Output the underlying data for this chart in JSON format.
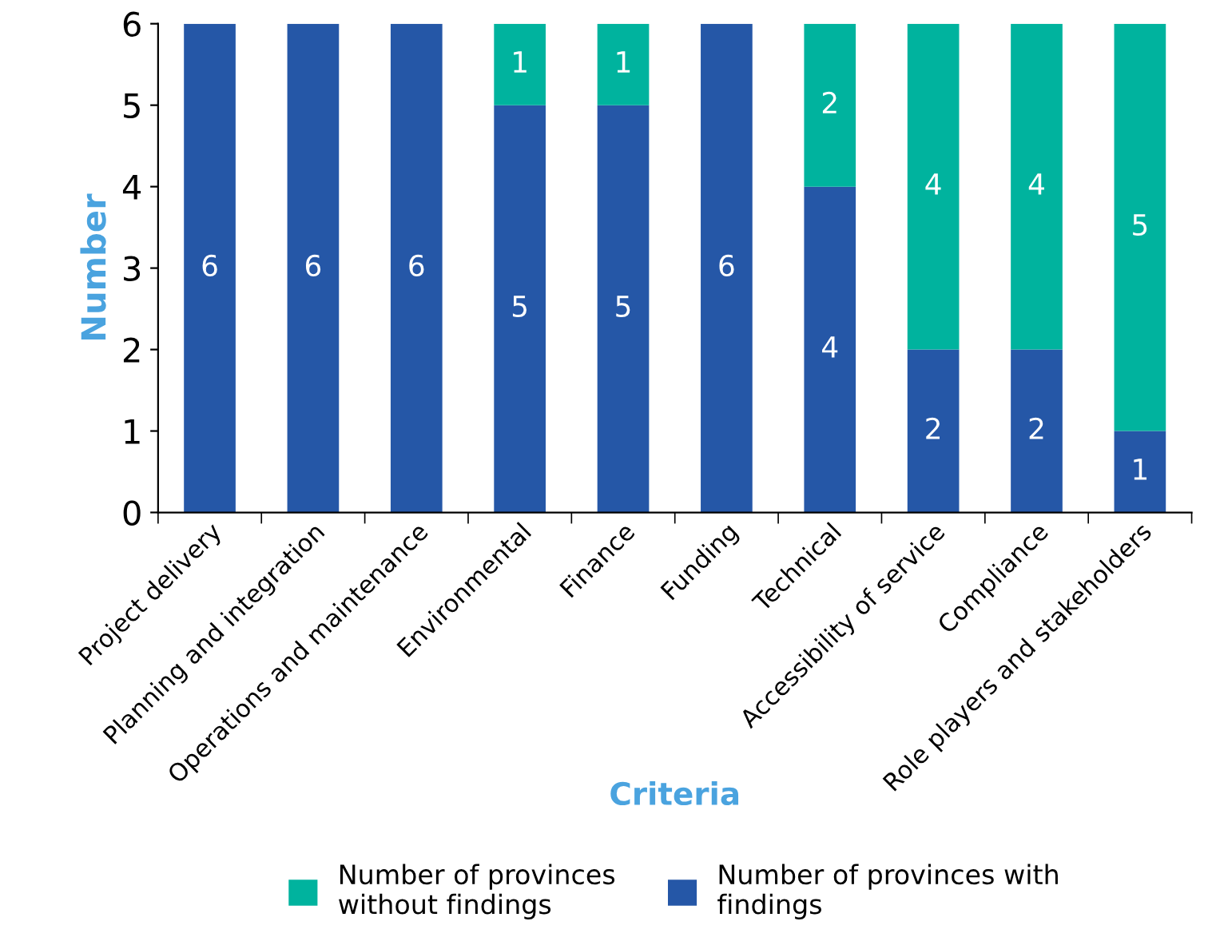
{
  "chart_data": {
    "type": "bar",
    "stacked": true,
    "xlabel": "Criteria",
    "ylabel": "Number",
    "categories": [
      "Project delivery",
      "Planning and integration",
      "Operations and maintenance",
      "Environmental",
      "Finance",
      "Funding",
      "Technical",
      "Accessibility of service",
      "Compliance",
      "Role players and stakeholders"
    ],
    "series": [
      {
        "name": "Number of provinces with findings",
        "color": "#2557a7",
        "values": [
          6,
          6,
          6,
          5,
          5,
          6,
          4,
          2,
          2,
          1
        ],
        "value_labels": [
          "6",
          "6",
          "6",
          "5",
          "5",
          "6",
          "4",
          "2",
          "2",
          "1"
        ]
      },
      {
        "name": "Number of provinces without findings",
        "color": "#00b39e",
        "values": [
          0,
          0,
          0,
          1,
          1,
          0,
          2,
          4,
          4,
          5
        ],
        "value_labels": [
          null,
          null,
          null,
          "1",
          "1",
          null,
          "2",
          "4",
          "4",
          "5"
        ]
      }
    ],
    "ylim": [
      0,
      6
    ],
    "yticks": [
      0,
      1,
      2,
      3,
      4,
      5,
      6
    ],
    "grid": false,
    "legend": "bottom"
  }
}
